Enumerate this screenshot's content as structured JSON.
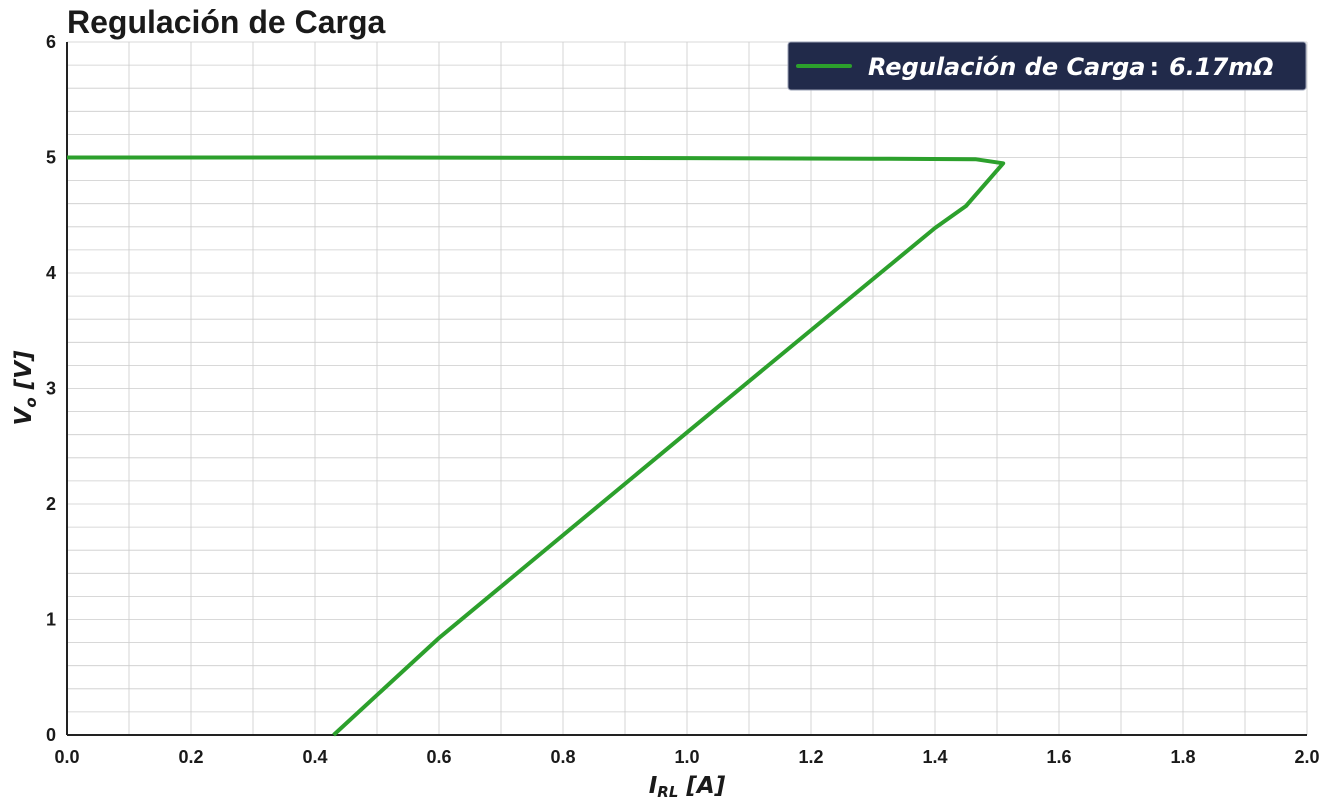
{
  "chart_data": {
    "type": "line",
    "title": "Regulación de Carga",
    "xlabel": "I_RL [A]",
    "ylabel": "V_o [V]",
    "xlim": [
      0,
      2.0
    ],
    "ylim": [
      0,
      6
    ],
    "x_ticks": [
      "0.0",
      "0.2",
      "0.4",
      "0.6",
      "0.8",
      "1.0",
      "1.2",
      "1.4",
      "1.6",
      "1.8",
      "2.0"
    ],
    "y_ticks": [
      "0",
      "1",
      "2",
      "3",
      "4",
      "5",
      "6"
    ],
    "grid": true,
    "legend_position": "top-right",
    "series": [
      {
        "name": "Regulación de Carga :  6.17mΩ",
        "color": "#2ca02c",
        "points": [
          {
            "x": 0.0,
            "y": 5.0
          },
          {
            "x": 0.5,
            "y": 5.0
          },
          {
            "x": 1.0,
            "y": 4.995
          },
          {
            "x": 1.3,
            "y": 4.99
          },
          {
            "x": 1.465,
            "y": 4.985
          },
          {
            "x": 1.51,
            "y": 4.95
          },
          {
            "x": 1.45,
            "y": 4.58
          },
          {
            "x": 1.4,
            "y": 4.39
          },
          {
            "x": 1.0,
            "y": 2.62
          },
          {
            "x": 0.6,
            "y": 0.84
          },
          {
            "x": 0.43,
            "y": 0.0
          }
        ]
      }
    ],
    "colors": {
      "line": "#2ca02c",
      "legend_background": "#212a4a",
      "grid": "#cccccc",
      "axis": "#222222"
    }
  },
  "legend": {
    "label_main": "Regulación de Carga",
    "label_sep": ":",
    "label_value": "6.17mΩ"
  }
}
